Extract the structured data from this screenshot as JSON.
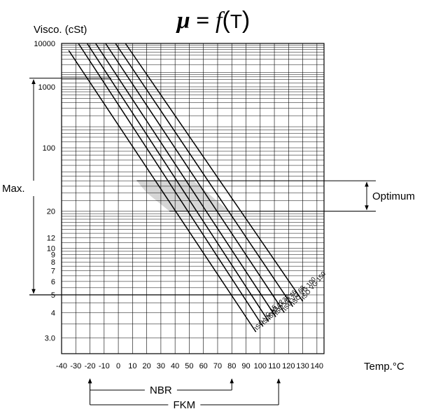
{
  "chart_data": {
    "type": "line",
    "title": {
      "symbol": "μ",
      "equals": " = ",
      "func": "f",
      "open": "(",
      "var": "T",
      "close": ")"
    },
    "ylabel": "Visco. (cSt)",
    "xlabel": "Temp.°C",
    "y_scale": "walther (ASTM viscosity-temperature)",
    "x_ticks": [
      -40,
      -30,
      -20,
      -10,
      0,
      10,
      20,
      30,
      40,
      50,
      60,
      70,
      80,
      90,
      100,
      110,
      120,
      130,
      140
    ],
    "y_ticks": [
      {
        "v": 3.0,
        "label": "3.0"
      },
      {
        "v": 4,
        "label": "4"
      },
      {
        "v": 5,
        "label": "5"
      },
      {
        "v": 6,
        "label": "6"
      },
      {
        "v": 7,
        "label": "7"
      },
      {
        "v": 8,
        "label": "8"
      },
      {
        "v": 9,
        "label": "9"
      },
      {
        "v": 10,
        "label": "10"
      },
      {
        "v": 12,
        "label": "12"
      },
      {
        "v": 20,
        "label": "20"
      },
      {
        "v": 100,
        "label": "100"
      },
      {
        "v": 1000,
        "label": "1000"
      },
      {
        "v": 10000,
        "label": "10000"
      }
    ],
    "grid": true,
    "series": [
      {
        "name": "ISO VG 15",
        "points": [
          [
            -35,
            6600
          ],
          [
            97,
            3.2
          ]
        ]
      },
      {
        "name": "ISO VG 22",
        "points": [
          [
            -28,
            9800
          ],
          [
            102,
            3.4
          ]
        ]
      },
      {
        "name": "ISO VG 32",
        "points": [
          [
            -22,
            10000
          ],
          [
            106,
            3.6
          ]
        ]
      },
      {
        "name": "ISO VG 46",
        "points": [
          [
            -16,
            10000
          ],
          [
            111,
            3.8
          ]
        ]
      },
      {
        "name": "ISO VG 68",
        "points": [
          [
            -9,
            10000
          ],
          [
            117,
            4.0
          ]
        ]
      },
      {
        "name": "ISO VG 100",
        "points": [
          [
            -2,
            10000
          ],
          [
            123,
            4.3
          ]
        ]
      },
      {
        "name": "ISO VG 150",
        "points": [
          [
            5,
            10000
          ],
          [
            130,
            4.6
          ]
        ]
      }
    ],
    "optimum": {
      "label": "Optimum",
      "range": [
        20,
        40
      ],
      "region": [
        [
          13,
          40
        ],
        [
          53,
          40
        ],
        [
          78,
          20
        ],
        [
          36,
          20
        ],
        [
          20,
          30
        ]
      ]
    },
    "max": {
      "label": "Max.",
      "range": [
        5,
        1500
      ]
    },
    "nbr": {
      "label": "NBR",
      "range": [
        -20,
        80
      ]
    },
    "fkm": {
      "label": "FKM",
      "range": [
        -20,
        113
      ]
    }
  }
}
